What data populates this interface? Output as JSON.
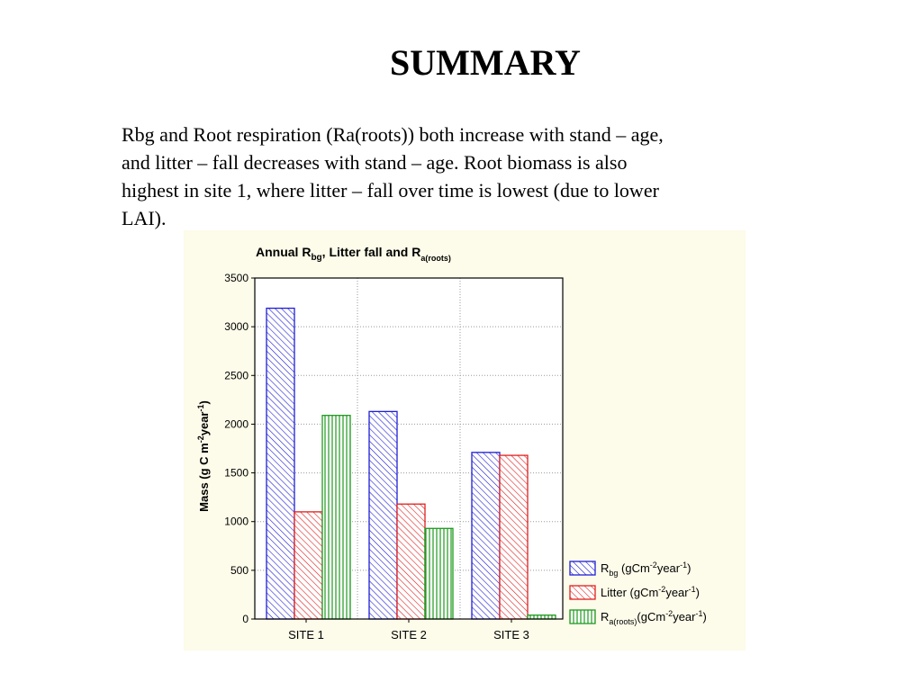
{
  "slide": {
    "title": "SUMMARY",
    "body_lines": [
      "Rbg and Root respiration (Ra(roots)) both increase with stand – age,",
      "and litter – fall decreases with stand – age.  Root biomass is also",
      "highest in site 1, where litter – fall over time is lowest (due to lower",
      "LAI)."
    ]
  },
  "chart_data": {
    "type": "bar",
    "title": {
      "prefix": "Annual R",
      "sub1": "bg",
      "middle": ", Litter fall and R",
      "sub2": "a(roots)"
    },
    "ylabel": {
      "prefix": "Mass (g C m",
      "sup1": "-2",
      "middle": "year",
      "sup2": "-1",
      "suffix": ")"
    },
    "xlabel": "",
    "categories": [
      "SITE 1",
      "SITE 2",
      "SITE 3"
    ],
    "ylim": [
      0,
      3500
    ],
    "yticks": [
      0,
      500,
      1000,
      1500,
      2000,
      2500,
      3000,
      3500
    ],
    "grid": true,
    "legend_position": "bottom-right",
    "series": [
      {
        "name": "Rbg (gCm-2year-1)",
        "legend": {
          "base": "R",
          "sub": "bg",
          "unit_pre": " (gCm",
          "sup1": "-2",
          "unit_mid": "year",
          "sup2": "-1",
          "unit_post": ")"
        },
        "values": [
          3190,
          2130,
          1710
        ],
        "color": "#1f1fd6",
        "pattern": "diagonal"
      },
      {
        "name": "Litter (gCm-2year-1)",
        "legend": {
          "base": "Litter",
          "sub": "",
          "unit_pre": " (gCm",
          "sup1": "-2",
          "unit_mid": "year",
          "sup2": "-1",
          "unit_post": ")"
        },
        "values": [
          1100,
          1180,
          1680
        ],
        "color": "#e01f1f",
        "pattern": "diagonal"
      },
      {
        "name": "Ra(roots)(gCm-2year-1)",
        "legend": {
          "base": "R",
          "sub": "a(roots)",
          "unit_pre": "(gCm",
          "sup1": "-2",
          "unit_mid": "year",
          "sup2": "-1",
          "unit_post": ")"
        },
        "values": [
          2090,
          930,
          40
        ],
        "color": "#1f9a1f",
        "pattern": "vertical"
      }
    ]
  }
}
